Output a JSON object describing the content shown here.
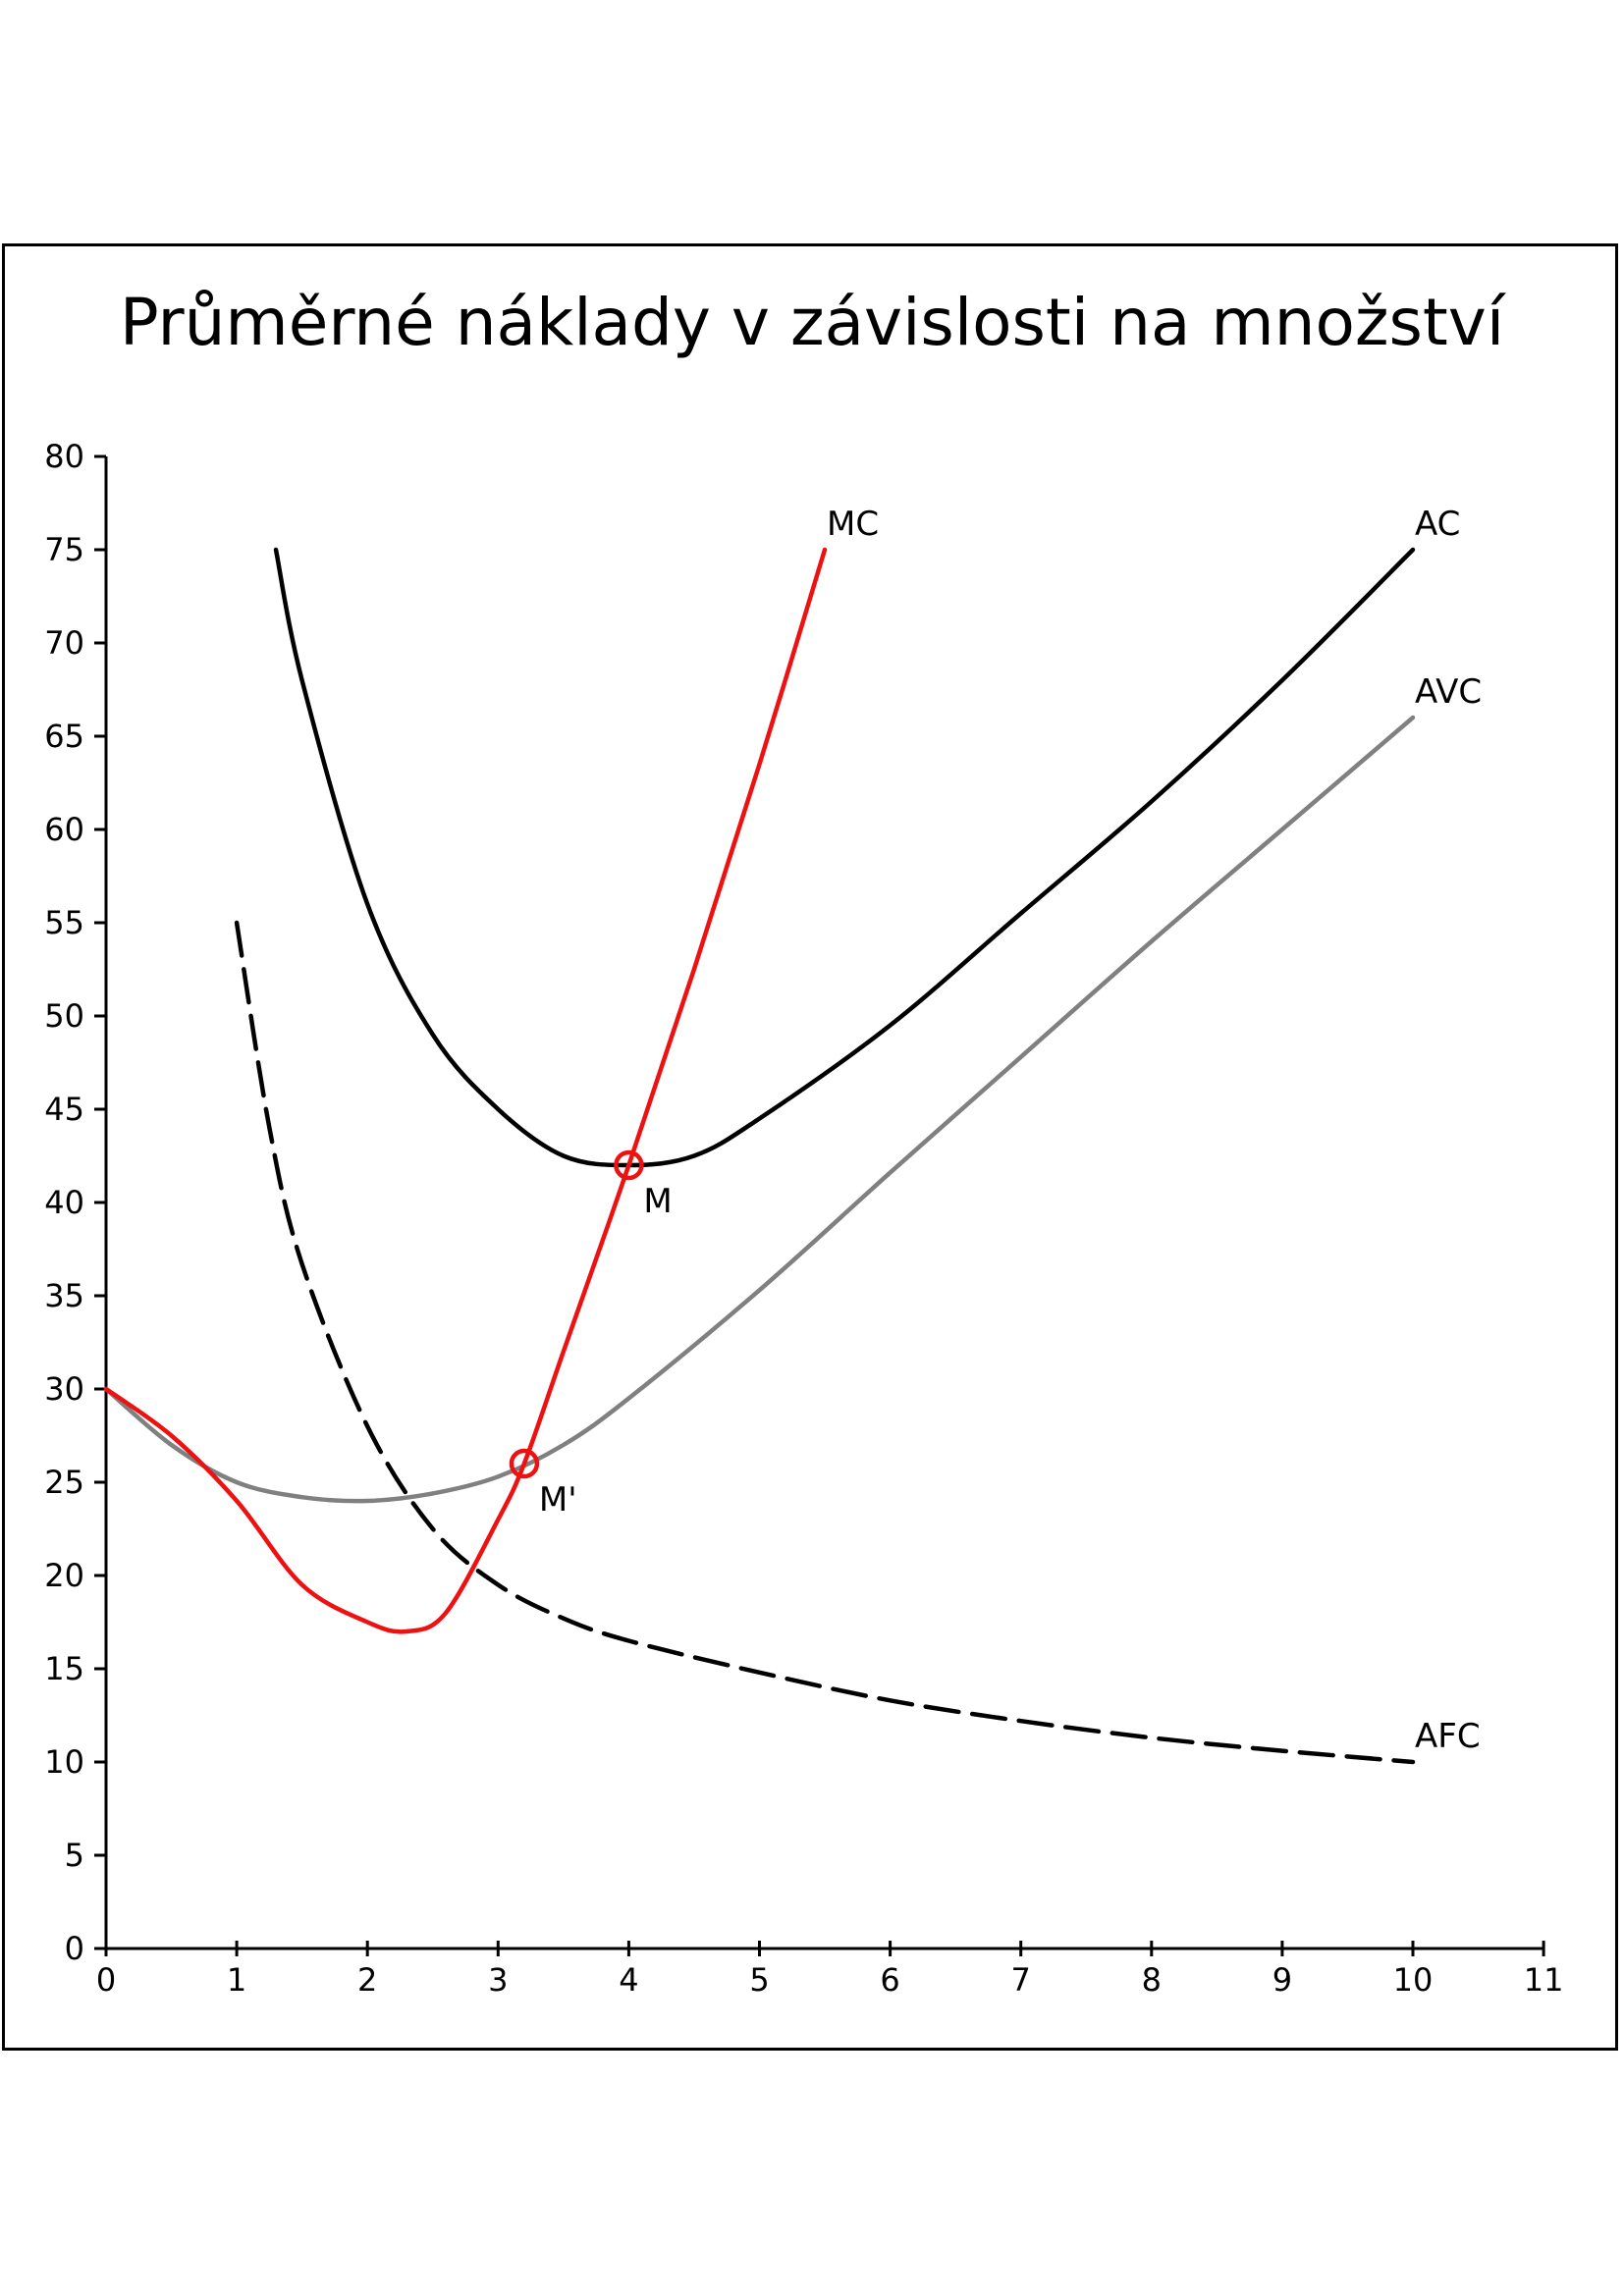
{
  "chart_data": {
    "type": "line",
    "title": "Průměrné náklady v závislosti na množství",
    "xlabel": "",
    "ylabel": "",
    "xlim": [
      0,
      11
    ],
    "ylim": [
      0,
      80
    ],
    "x_ticks": [
      0,
      1,
      2,
      3,
      4,
      5,
      6,
      7,
      8,
      9,
      10,
      11
    ],
    "y_ticks": [
      0,
      5,
      10,
      15,
      20,
      25,
      30,
      35,
      40,
      45,
      50,
      55,
      60,
      65,
      70,
      75,
      80
    ],
    "grid": false,
    "legend": "none",
    "series": [
      {
        "name": "MC",
        "color": "#ee1111",
        "style": "solid",
        "points": [
          [
            0,
            30
          ],
          [
            0.5,
            27.5
          ],
          [
            1,
            24
          ],
          [
            1.5,
            19.5
          ],
          [
            2,
            17.5
          ],
          [
            2.3,
            17
          ],
          [
            2.6,
            18
          ],
          [
            3,
            23
          ],
          [
            3.2,
            26
          ],
          [
            3.5,
            32
          ],
          [
            4,
            42
          ],
          [
            4.5,
            52.5
          ],
          [
            5,
            63.5
          ],
          [
            5.5,
            75
          ]
        ]
      },
      {
        "name": "AC",
        "color": "#000000",
        "style": "solid",
        "points": [
          [
            1.3,
            75
          ],
          [
            1.5,
            68
          ],
          [
            2,
            56
          ],
          [
            2.5,
            49
          ],
          [
            3,
            45
          ],
          [
            3.5,
            42.5
          ],
          [
            4,
            42
          ],
          [
            4.5,
            42.5
          ],
          [
            5,
            44.5
          ],
          [
            6,
            49.5
          ],
          [
            7,
            55.5
          ],
          [
            8,
            61.5
          ],
          [
            9,
            68
          ],
          [
            10,
            75
          ]
        ]
      },
      {
        "name": "AVC",
        "color": "#808080",
        "style": "solid",
        "points": [
          [
            0,
            30
          ],
          [
            0.5,
            27
          ],
          [
            1,
            25
          ],
          [
            1.5,
            24.2
          ],
          [
            2,
            24
          ],
          [
            2.5,
            24.4
          ],
          [
            3,
            25.3
          ],
          [
            3.5,
            27
          ],
          [
            4,
            29.5
          ],
          [
            5,
            35.3
          ],
          [
            6,
            41.6
          ],
          [
            7,
            47.8
          ],
          [
            8,
            54
          ],
          [
            9,
            60
          ],
          [
            10,
            66
          ]
        ]
      },
      {
        "name": "AFC",
        "color": "#000000",
        "style": "dashed",
        "points": [
          [
            1,
            55
          ],
          [
            1.25,
            44
          ],
          [
            1.5,
            36.7
          ],
          [
            2,
            28
          ],
          [
            2.5,
            22.5
          ],
          [
            3,
            19.5
          ],
          [
            3.5,
            17.7
          ],
          [
            4,
            16.5
          ],
          [
            5,
            14.8
          ],
          [
            6,
            13.3
          ],
          [
            7,
            12.2
          ],
          [
            8,
            11.3
          ],
          [
            9,
            10.6
          ],
          [
            10,
            10
          ]
        ]
      }
    ],
    "annotations": [
      {
        "label": "M",
        "x": 4,
        "y": 42,
        "color": "#ee1111"
      },
      {
        "label": "M'",
        "x": 3.2,
        "y": 26,
        "color": "#ee1111"
      }
    ]
  }
}
